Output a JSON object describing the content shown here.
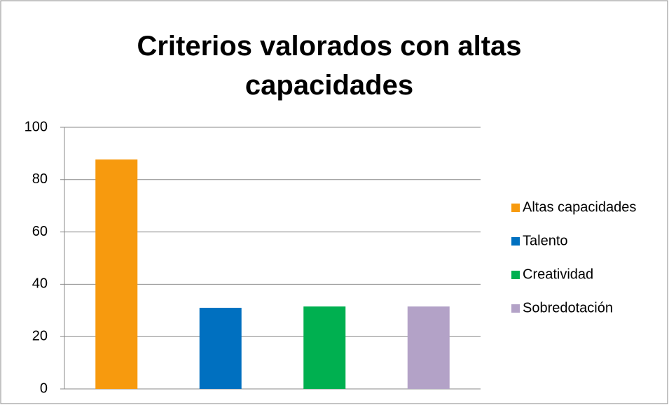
{
  "chart_data": {
    "type": "bar",
    "title": "Criterios valorados con altas capacidades",
    "categories": [
      "Altas capacidades",
      "Talento",
      "Creatividad",
      "Sobredotación"
    ],
    "values": [
      87.7,
      31,
      31.5,
      31.5
    ],
    "colors": [
      "#f79a0e",
      "#0070c0",
      "#00b050",
      "#b3a2c7"
    ],
    "ylim": [
      0,
      100
    ],
    "yticks": [
      0,
      20,
      40,
      60,
      80,
      100
    ],
    "grid": true,
    "legend": "right"
  }
}
